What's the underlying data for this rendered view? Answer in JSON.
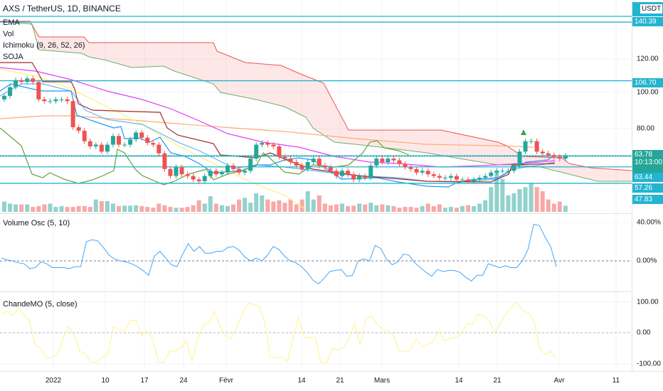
{
  "header": {
    "symbol_title": "AXS / TetherUS, 1D, BINANCE"
  },
  "main_legend": [
    "EMA",
    "Vol",
    "Ichimoku (9, 26, 52, 26)",
    "SOJA"
  ],
  "price_axis": {
    "currency": "USDT",
    "ticks": [
      {
        "label": "120.00",
        "value": 120
      },
      {
        "label": "100.00",
        "value": 100
      },
      {
        "label": "80.00",
        "value": 80
      }
    ],
    "levels": [
      {
        "label": "140.39",
        "value": 140.39
      },
      {
        "label": "106.70",
        "value": 106.7
      },
      {
        "label": "63.44",
        "value": 63.44
      },
      {
        "label": "57.26",
        "value": 57.26
      },
      {
        "label": "47.83",
        "value": 47.83
      }
    ],
    "current_price": "63.78",
    "countdown": "10:13:00"
  },
  "volume_osc": {
    "title": "Volume Osc (5, 10)",
    "ticks": [
      "40.00%",
      "0.00%"
    ],
    "values": [
      3,
      1,
      0,
      -2,
      -3,
      -8,
      -7,
      -1,
      -3,
      -7,
      -7,
      -7,
      -8,
      -6,
      -6,
      20,
      22,
      21,
      14,
      6,
      2,
      0,
      -1,
      -3,
      -6,
      -10,
      -15,
      5,
      10,
      3,
      -4,
      -6,
      7,
      18,
      10,
      15,
      8,
      8,
      10,
      10,
      14,
      15,
      11,
      4,
      0,
      3,
      0,
      6,
      15,
      12,
      5,
      0,
      -2,
      -6,
      -12,
      -20,
      -24,
      -18,
      -11,
      -10,
      -9,
      -16,
      -15,
      0,
      2,
      0,
      16,
      13,
      2,
      -4,
      -1,
      7,
      6,
      -2,
      -7,
      -12,
      -16,
      -9,
      -11,
      -10,
      -10,
      -12,
      -17,
      -21,
      -15,
      -15,
      -3,
      -5,
      -7,
      -5,
      -7,
      -7,
      0,
      12,
      38,
      37,
      25,
      15,
      -6
    ]
  },
  "chande_mo": {
    "title": "ChandeMO (5, close)",
    "ticks": [
      "100.00",
      "0.00",
      "-100.00"
    ],
    "values": [
      60,
      70,
      55,
      80,
      60,
      40,
      -40,
      -50,
      -80,
      -80,
      -70,
      -20,
      20,
      -10,
      -60,
      -70,
      -95,
      -95,
      -80,
      -70,
      20,
      10,
      5,
      40,
      40,
      -10,
      5,
      -20,
      -95,
      -95,
      -60,
      -60,
      -50,
      -25,
      -95,
      -20,
      25,
      30,
      70,
      20,
      -10,
      -20,
      20,
      60,
      95,
      90,
      85,
      30,
      -80,
      -80,
      -80,
      -95,
      -20,
      50,
      -15,
      -15,
      -15,
      -95,
      -100,
      -50,
      -55,
      -50,
      -20,
      30,
      -40,
      45,
      55,
      30,
      10,
      5,
      -10,
      -60,
      -60,
      -55,
      -20,
      -45,
      -40,
      -30,
      5,
      -25,
      -20,
      -15,
      -5,
      30,
      25,
      60,
      55,
      40,
      0,
      30,
      60,
      80,
      100,
      70,
      65,
      40,
      -50,
      -70,
      -60,
      -85
    ]
  },
  "time_axis": [
    "2022",
    "10",
    "17",
    "24",
    "Févr",
    "14",
    "21",
    "Mars",
    "14",
    "21",
    "Avr",
    "11"
  ],
  "chart_data": {
    "type": "candlestick",
    "closes": [
      98,
      103,
      107,
      106,
      108,
      106,
      96,
      95,
      95,
      96,
      96,
      95,
      80,
      78,
      72,
      69,
      70,
      66,
      70,
      75,
      70,
      70,
      73,
      77,
      74,
      71,
      70,
      65,
      56,
      52,
      57,
      53,
      52,
      50,
      49,
      52,
      55,
      53,
      54,
      58,
      56,
      54,
      55,
      62,
      70,
      71,
      70,
      69,
      63,
      62,
      60,
      58,
      56,
      60,
      62,
      58,
      57,
      55,
      52,
      55,
      53,
      50,
      52,
      51,
      58,
      62,
      60,
      62,
      61,
      59,
      57,
      56,
      54,
      55,
      53,
      52,
      51,
      51,
      52,
      50,
      50,
      49,
      50,
      51,
      52,
      54,
      55,
      55,
      55,
      58,
      66,
      72,
      72,
      66,
      65,
      64,
      63,
      62,
      63.78
    ],
    "volumes": [
      25,
      20,
      18,
      18,
      18,
      12,
      14,
      18,
      20,
      12,
      14,
      12,
      12,
      14,
      14,
      12,
      30,
      26,
      26,
      20,
      14,
      15,
      15,
      16,
      14,
      12,
      10,
      20,
      16,
      12,
      10,
      10,
      12,
      16,
      28,
      20,
      38,
      20,
      16,
      14,
      18,
      30,
      34,
      22,
      45,
      40,
      30,
      25,
      28,
      22,
      30,
      18,
      30,
      50,
      30,
      40,
      20,
      16,
      18,
      20,
      14,
      15,
      20,
      18,
      22,
      16,
      18,
      16,
      14,
      10,
      12,
      12,
      10,
      14,
      20,
      14,
      18,
      10,
      12,
      10,
      14,
      16,
      14,
      20,
      28,
      60,
      100,
      80,
      40,
      45,
      55,
      60,
      70,
      60,
      50,
      30,
      20,
      25,
      15
    ],
    "colors": {
      "up": "#26a69a",
      "down": "#ef5350",
      "level": "#22b5d0"
    }
  }
}
